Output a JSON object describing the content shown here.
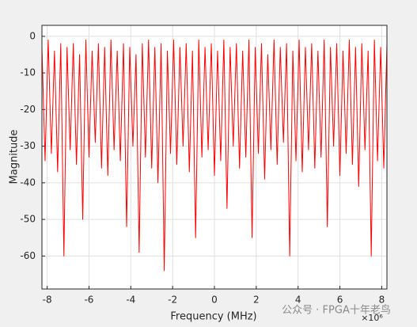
{
  "chart_data": {
    "type": "line",
    "xlabel": "Frequency (MHz)",
    "ylabel": "Magnitude",
    "x_multiplier": "×10⁶",
    "watermark": "公众号 · FPGA十年老鸟",
    "color": "#ff0000",
    "grid": true,
    "xlim": [
      -8.25,
      8.25
    ],
    "ylim": [
      -69,
      3
    ],
    "xticks": [
      -8,
      -6,
      -4,
      -2,
      0,
      2,
      4,
      6,
      8
    ],
    "yticks": [
      -60,
      -50,
      -40,
      -30,
      -20,
      -10,
      0
    ],
    "x": [
      -8.25,
      -8.1,
      -7.95,
      -7.8,
      -7.65,
      -7.5,
      -7.35,
      -7.2,
      -7.05,
      -6.9,
      -6.75,
      -6.6,
      -6.45,
      -6.3,
      -6.15,
      -6,
      -5.85,
      -5.7,
      -5.55,
      -5.4,
      -5.25,
      -5.1,
      -4.95,
      -4.8,
      -4.65,
      -4.5,
      -4.35,
      -4.2,
      -4.05,
      -3.9,
      -3.75,
      -3.6,
      -3.45,
      -3.3,
      -3.15,
      -3,
      -2.85,
      -2.7,
      -2.55,
      -2.4,
      -2.25,
      -2.1,
      -1.95,
      -1.8,
      -1.65,
      -1.5,
      -1.35,
      -1.2,
      -1.05,
      -0.9,
      -0.75,
      -0.6,
      -0.45,
      -0.3,
      -0.15,
      0,
      0.15,
      0.3,
      0.45,
      0.6,
      0.75,
      0.9,
      1.05,
      1.2,
      1.35,
      1.5,
      1.65,
      1.8,
      1.95,
      2.1,
      2.25,
      2.4,
      2.55,
      2.7,
      2.85,
      3,
      3.15,
      3.3,
      3.45,
      3.6,
      3.75,
      3.9,
      4.05,
      4.2,
      4.35,
      4.5,
      4.65,
      4.8,
      4.95,
      5.1,
      5.25,
      5.4,
      5.55,
      5.7,
      5.85,
      6,
      6.15,
      6.3,
      6.45,
      6.6,
      6.75,
      6.9,
      7.05,
      7.2,
      7.35,
      7.5,
      7.65,
      7.8,
      7.95,
      8.1,
      8.25
    ],
    "values": [
      -3,
      -34,
      -1,
      -32,
      -4,
      -37,
      -2,
      -60,
      -3,
      -31,
      -2,
      -35,
      -5,
      -50,
      -1,
      -33,
      -4,
      -29,
      -2,
      -36,
      -3,
      -38,
      -1,
      -31,
      -4,
      -34,
      -2,
      -52,
      -3,
      -30,
      -5,
      -59,
      -2,
      -33,
      -1,
      -36,
      -3,
      -40,
      -2,
      -64,
      -4,
      -32,
      -1,
      -35,
      -3,
      -30,
      -2,
      -37,
      -4,
      -55,
      -1,
      -33,
      -3,
      -31,
      -2,
      -38,
      -4,
      -34,
      -1,
      -47,
      -3,
      -30,
      -2,
      -36,
      -4,
      -33,
      -1,
      -55,
      -3,
      -32,
      -2,
      -39,
      -5,
      -31,
      -1,
      -35,
      -3,
      -29,
      -2,
      -60,
      -4,
      -34,
      -1,
      -37,
      -3,
      -31,
      -2,
      -36,
      -4,
      -33,
      -1,
      -52,
      -3,
      -30,
      -2,
      -38,
      -4,
      -32,
      -1,
      -35,
      -3,
      -41,
      -2,
      -31,
      -4,
      -60,
      -1,
      -34,
      -3,
      -36,
      -2
    ]
  }
}
